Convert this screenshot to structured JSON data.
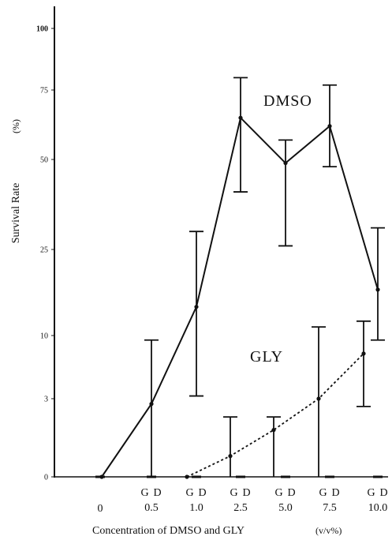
{
  "chart_data": {
    "type": "line",
    "title": "",
    "xlabel": "Concentration of DMSO and GLY",
    "xlabel_unit": "(v/v%)",
    "ylabel": "Survival Rate",
    "ylabel_unit": "(%)",
    "y_scale": "non-linear (custom spacing between printed ticks)",
    "y_ticks": [
      "0",
      "3",
      "10",
      "25",
      "50",
      "75",
      "100"
    ],
    "x_categories": [
      "0",
      "0.5",
      "1.0",
      "2.5",
      "5.0",
      "7.5",
      "10.0"
    ],
    "group_labels": [
      "G",
      "D"
    ],
    "grid": false,
    "legend": "inline labels",
    "series": [
      {
        "name": "DMSO",
        "style": "solid",
        "color": "#111111",
        "points": [
          {
            "x": "0",
            "y": 0
          },
          {
            "x": "0.5",
            "y": 2.8,
            "low": 0,
            "high": 9.5
          },
          {
            "x": "1.0",
            "y": 15,
            "low": 3.3,
            "high": 30
          },
          {
            "x": "2.5",
            "y": 65,
            "low": 41,
            "high": 80
          },
          {
            "x": "5.0",
            "y": 49,
            "low": 26,
            "high": 57
          },
          {
            "x": "7.5",
            "y": 62,
            "low": 48,
            "high": 77
          },
          {
            "x": "10.0",
            "y": 18,
            "low": 9.5,
            "high": 31
          }
        ]
      },
      {
        "name": "GLY",
        "style": "dotted",
        "color": "#111111",
        "points": [
          {
            "x": "1.0",
            "y": 0
          },
          {
            "x": "2.5",
            "y": 0.8,
            "low": 0,
            "high": 2.3
          },
          {
            "x": "5.0",
            "y": 1.8,
            "low": 0,
            "high": 2.3
          },
          {
            "x": "7.5",
            "y": 3,
            "low": 0,
            "high": 11.5
          },
          {
            "x": "10.0",
            "y": 8,
            "low": 2.7,
            "high": 12.5
          }
        ]
      }
    ]
  }
}
